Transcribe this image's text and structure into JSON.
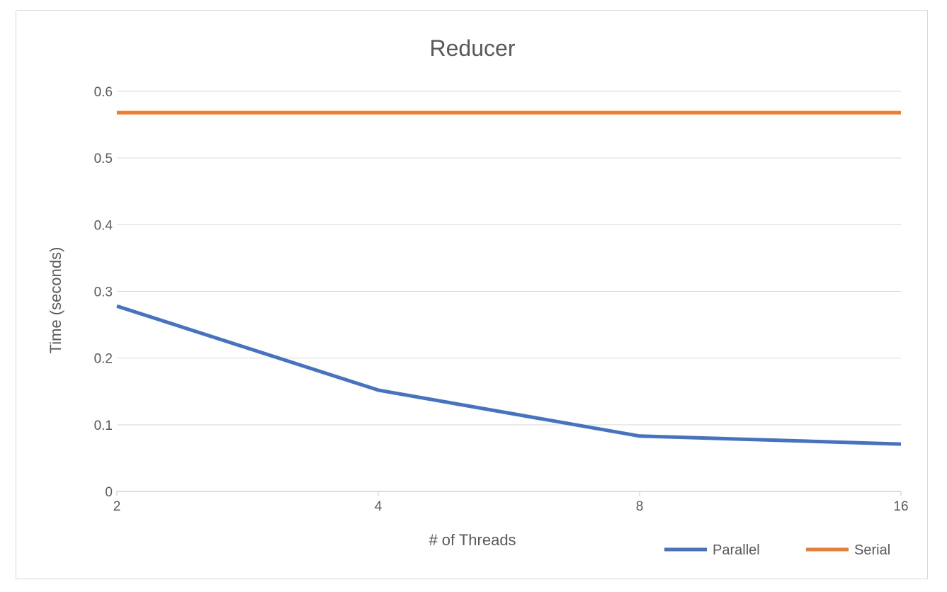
{
  "chart_data": {
    "type": "line",
    "title": "Reducer",
    "xlabel": "# of Threads",
    "ylabel": "Time (seconds)",
    "categories": [
      "2",
      "4",
      "8",
      "16"
    ],
    "x_axis_scale": "categorical (equally spaced)",
    "ylim": [
      0,
      0.6
    ],
    "yticks": [
      "0",
      "0.1",
      "0.2",
      "0.3",
      "0.4",
      "0.5",
      "0.6"
    ],
    "grid": true,
    "legend_position": "bottom-right",
    "series": [
      {
        "name": "Parallel",
        "color": "#4472c4",
        "values": [
          0.278,
          0.152,
          0.083,
          0.071
        ]
      },
      {
        "name": "Serial",
        "color": "#ed7d31",
        "values": [
          0.568,
          0.568,
          0.568,
          0.568
        ]
      }
    ]
  }
}
